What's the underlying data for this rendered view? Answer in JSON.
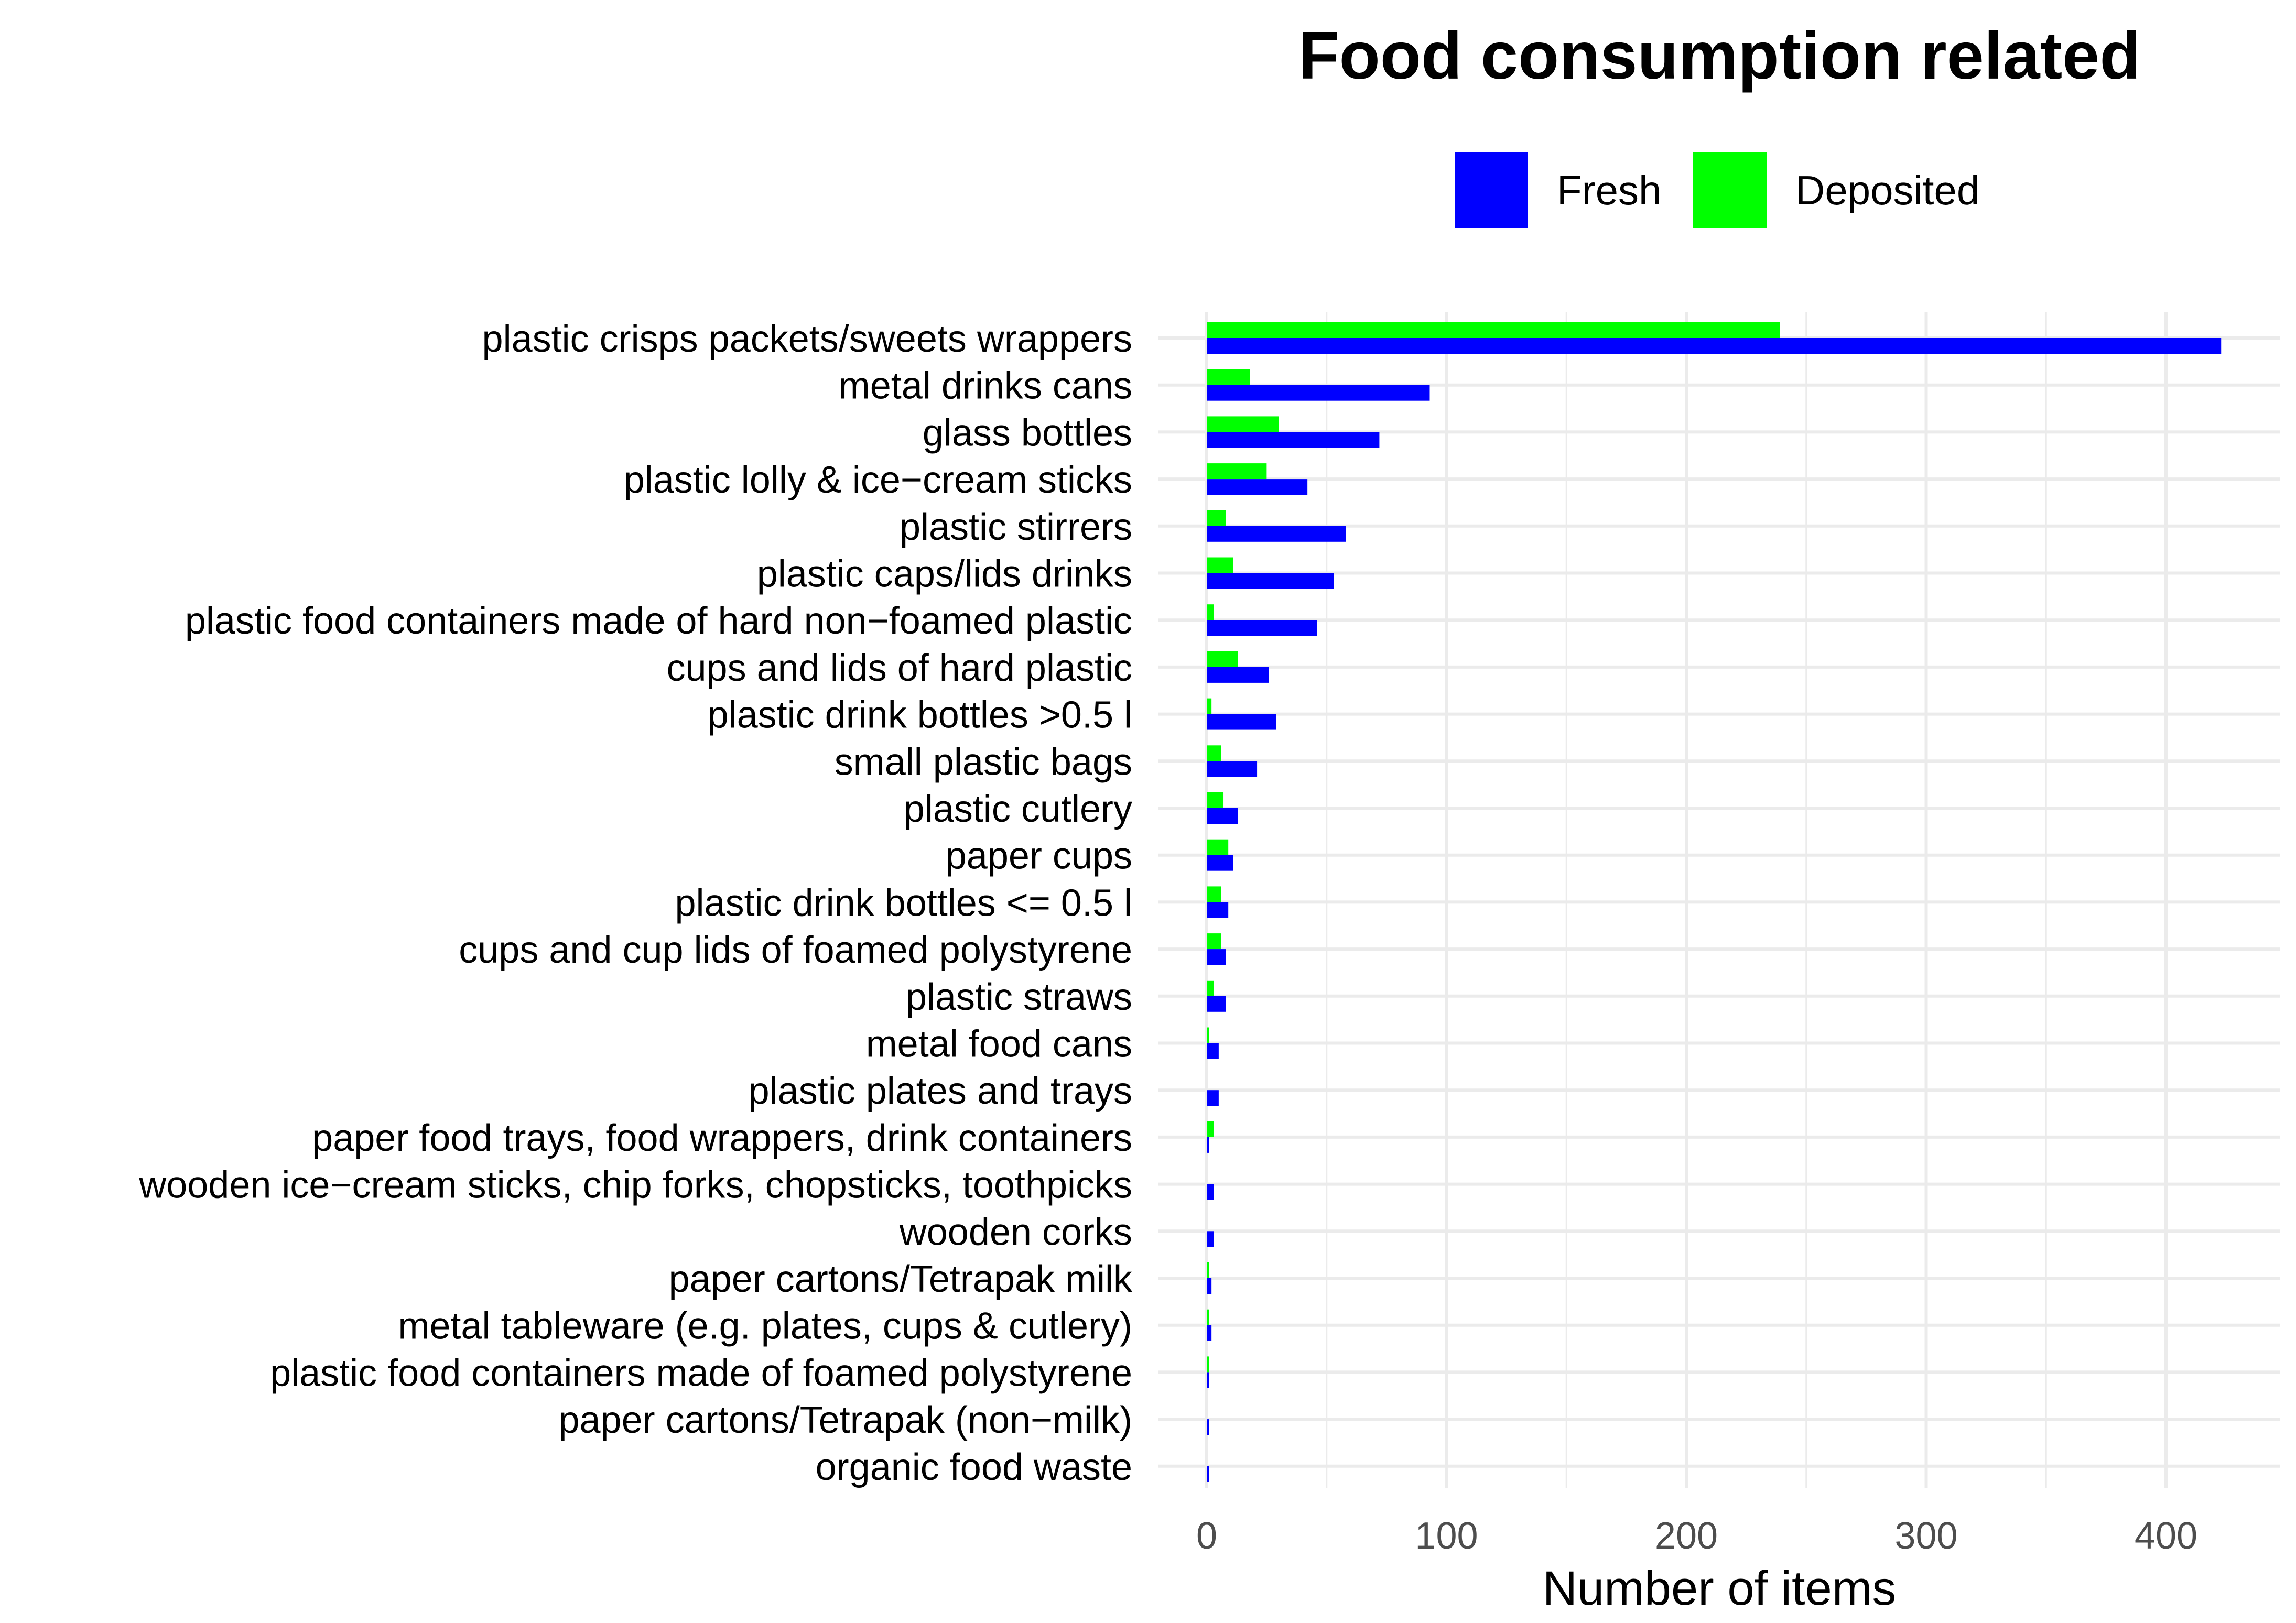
{
  "chart_data": {
    "type": "bar",
    "orientation": "horizontal",
    "title": "Food consumption related",
    "xlabel": "Number of items",
    "ylabel": "",
    "xlim": [
      0,
      430
    ],
    "xticks": [
      0,
      100,
      200,
      300,
      400
    ],
    "grid": true,
    "legend_position": "top",
    "categories": [
      "plastic crisps packets/sweets wrappers",
      "metal drinks cans",
      "glass bottles",
      "plastic lolly & ice−cream sticks",
      "plastic stirrers",
      "plastic caps/lids drinks",
      "plastic food containers made of hard non−foamed plastic",
      "cups and lids of hard plastic",
      "plastic drink bottles >0.5 l",
      "small plastic bags",
      "plastic cutlery",
      "paper cups",
      "plastic drink bottles <= 0.5 l",
      "cups and cup lids of foamed polystyrene",
      "plastic straws",
      "metal food cans",
      "plastic plates and trays",
      "paper food trays, food wrappers, drink containers",
      "wooden ice−cream sticks, chip forks, chopsticks, toothpicks",
      "wooden corks",
      "paper cartons/Tetrapak milk",
      "metal tableware (e.g. plates, cups & cutlery)",
      "plastic food containers made of foamed polystyrene",
      "paper cartons/Tetrapak (non−milk)",
      "organic food waste"
    ],
    "series": [
      {
        "name": "Fresh",
        "color": "#0000FF",
        "values": [
          423,
          93,
          72,
          42,
          58,
          53,
          46,
          26,
          29,
          21,
          13,
          11,
          9,
          8,
          8,
          5,
          5,
          1,
          3,
          3,
          2,
          2,
          1,
          1,
          1
        ]
      },
      {
        "name": "Deposited",
        "color": "#00FF00",
        "values": [
          239,
          18,
          30,
          25,
          8,
          11,
          3,
          13,
          2,
          6,
          7,
          9,
          6,
          6,
          3,
          1,
          0,
          3,
          0,
          0,
          1,
          1,
          1,
          0,
          0
        ]
      }
    ]
  }
}
